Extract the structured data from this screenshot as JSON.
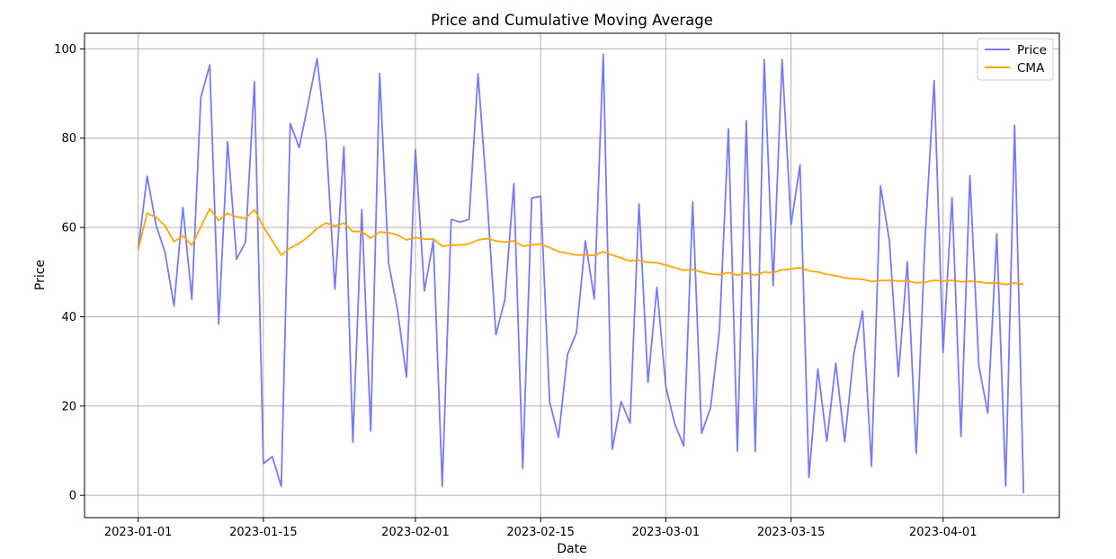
{
  "chart_data": {
    "type": "line",
    "title": "Price and Cumulative Moving Average",
    "xlabel": "Date",
    "ylabel": "Price",
    "x_start": "2023-01-01",
    "x_step_days": 1,
    "xlim": [
      "2022-12-26",
      "2023-04-14"
    ],
    "ylim": [
      -5,
      103.5
    ],
    "x_ticks": [
      "2023-01-01",
      "2023-01-15",
      "2023-02-01",
      "2023-02-15",
      "2023-03-01",
      "2023-03-15",
      "2023-04-01"
    ],
    "y_ticks": [
      0,
      20,
      40,
      60,
      80,
      100
    ],
    "grid": true,
    "legend_position": "top-right",
    "series": [
      {
        "name": "Price",
        "color": "#7a7af2",
        "values": [
          55,
          71.5,
          60.5,
          54.5,
          42.4,
          64.5,
          43.9,
          89.1,
          96.4,
          38.4,
          79.2,
          52.9,
          56.7,
          92.6,
          7.1,
          8.7,
          2.0,
          83.3,
          77.9,
          87.7,
          97.8,
          80.0,
          46.2,
          78.1,
          11.9,
          64.0,
          14.4,
          94.5,
          52.0,
          41.5,
          26.5,
          77.5,
          45.8,
          57.0,
          2.0,
          61.8,
          61.2,
          61.8,
          94.4,
          67.0,
          36.0,
          43.8,
          69.8,
          6.0,
          66.6,
          67.0,
          21.0,
          13.0,
          31.5,
          36.4,
          57.0,
          44.0,
          98.8,
          10.3,
          21.0,
          16.2,
          65.3,
          25.3,
          46.6,
          24.3,
          16.0,
          11.1,
          65.7,
          13.9,
          19.6,
          37.0,
          82.1,
          9.9,
          83.9,
          9.8,
          97.6,
          47.0,
          97.6,
          60.6,
          74.0,
          4.0,
          28.3,
          12.1,
          29.6,
          12.0,
          31.5,
          41.3,
          6.5,
          69.3,
          57.0,
          26.6,
          52.3,
          9.4,
          58.0,
          92.9,
          32.0,
          66.7,
          13.2,
          71.6,
          29.0,
          18.4,
          58.6,
          2.1,
          82.9,
          0.5
        ]
      },
      {
        "name": "CMA",
        "color": "#ffa500",
        "values": [
          55.0,
          63.2,
          62.3,
          60.4,
          56.8,
          58.1,
          56.0,
          60.1,
          64.2,
          61.6,
          63.2,
          62.4,
          62.0,
          64.0,
          60.2,
          57.0,
          53.8,
          55.4,
          56.4,
          57.9,
          59.8,
          61.0,
          60.3,
          61.0,
          59.1,
          59.1,
          57.6,
          59.0,
          58.8,
          58.3,
          57.2,
          57.7,
          57.4,
          57.4,
          55.8,
          56.0,
          56.1,
          56.3,
          57.2,
          57.5,
          57.0,
          56.7,
          57.0,
          55.8,
          56.1,
          56.3,
          55.5,
          54.6,
          54.2,
          53.8,
          53.9,
          53.7,
          54.6,
          53.8,
          53.2,
          52.5,
          52.7,
          52.2,
          52.1,
          51.6,
          51.0,
          50.4,
          50.6,
          50.0,
          49.6,
          49.4,
          49.9,
          49.3,
          49.8,
          49.3,
          50.0,
          49.9,
          50.5,
          50.7,
          51.0,
          50.3,
          50.0,
          49.5,
          49.2,
          48.7,
          48.5,
          48.4,
          47.9,
          48.1,
          48.2,
          48.0,
          48.0,
          47.6,
          47.7,
          48.2,
          48.0,
          48.2,
          47.8,
          48.0,
          47.8,
          47.5,
          47.6,
          47.2,
          47.6,
          47.2
        ]
      }
    ]
  }
}
